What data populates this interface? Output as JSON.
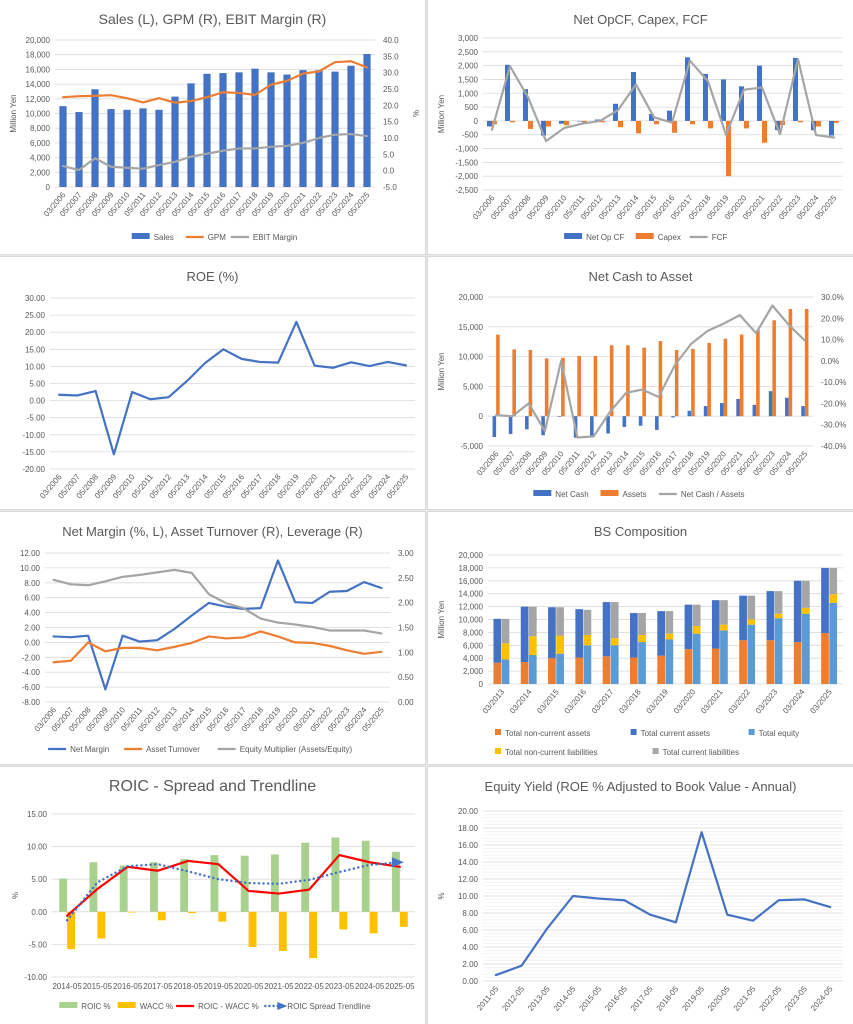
{
  "colors": {
    "blue": "#4472c4",
    "orange": "#ed7d31",
    "gray": "#a5a5a5",
    "yellow": "#ffc000",
    "lightblue": "#5b9bd5",
    "green": "#a9d18e",
    "red": "#ff0000",
    "negative_tick": "#ff0000",
    "text": "#595959",
    "gridline": "#d9d9d9"
  },
  "chart_data": [
    {
      "id": "sales-gpm-ebit",
      "type": "bar",
      "title": "Sales (L), GPM (R), EBIT Margin (R)",
      "ylabel": "Million Yen",
      "y2label": "%",
      "ylim": [
        0,
        20000
      ],
      "yticks": [
        0,
        2000,
        4000,
        6000,
        8000,
        10000,
        12000,
        14000,
        16000,
        18000,
        20000
      ],
      "ytick_labels": [
        "0",
        "2,000",
        "4,000",
        "6,000",
        "8,000",
        "10,000",
        "12,000",
        "14,000",
        "16,000",
        "18,000",
        "20,000"
      ],
      "y2lim": [
        -5,
        40
      ],
      "y2ticks": [
        -5,
        0,
        5,
        10,
        15,
        20,
        25,
        30,
        35,
        40
      ],
      "y2tick_labels": [
        "-5.0",
        "0.0",
        "5.0",
        "10.0",
        "15.0",
        "20.0",
        "25.0",
        "30.0",
        "35.0",
        "40.0"
      ],
      "categories": [
        "03/2006",
        "05/2007",
        "05/2008",
        "05/2009",
        "05/2010",
        "05/2011",
        "05/2012",
        "05/2013",
        "05/2014",
        "05/2015",
        "05/2016",
        "05/2017",
        "05/2018",
        "05/2019",
        "05/2020",
        "05/2021",
        "05/2022",
        "05/2023",
        "05/2024",
        "05/2025"
      ],
      "grid": true,
      "legend": "bottom",
      "series": [
        {
          "name": "Sales",
          "kind": "bar",
          "axis": "left",
          "color": "blue",
          "values": [
            11000,
            10200,
            13300,
            10600,
            10500,
            10700,
            10500,
            12300,
            14100,
            15400,
            15500,
            15600,
            16100,
            15600,
            15300,
            15900,
            15900,
            15700,
            16500,
            18100
          ]
        },
        {
          "name": "GPM",
          "kind": "line",
          "axis": "right",
          "color": "orange",
          "values": [
            22.5,
            22.8,
            22.9,
            23.1,
            22.2,
            20.9,
            22.2,
            20.8,
            21.3,
            22.5,
            24.0,
            23.8,
            23.2,
            26.3,
            27.5,
            29.7,
            30.4,
            33.2,
            33.5,
            31.6
          ]
        },
        {
          "name": "EBIT Margin",
          "kind": "line",
          "axis": "right",
          "color": "gray",
          "values": [
            1.4,
            0.2,
            3.8,
            1.2,
            0.9,
            0.6,
            1.7,
            2.7,
            4.3,
            5.2,
            6.1,
            6.8,
            6.8,
            7.3,
            7.6,
            8.5,
            10.0,
            11.0,
            11.2,
            10.6
          ]
        }
      ]
    },
    {
      "id": "net-opcf-capex-fcf",
      "type": "bar",
      "title": "Net OpCF, Capex, FCF",
      "ylabel": "Million Yen",
      "ylim": [
        -2500,
        3000
      ],
      "yticks": [
        -2500,
        -2000,
        -1500,
        -1000,
        -500,
        0,
        500,
        1000,
        1500,
        2000,
        2500,
        3000
      ],
      "ytick_labels": [
        "-2,500",
        "-2,000",
        "-1,500",
        "-1,000",
        "-500",
        "0",
        "500",
        "1,000",
        "1,500",
        "2,000",
        "2,500",
        "3,000"
      ],
      "categories": [
        "03/2006",
        "05/2007",
        "05/2008",
        "05/2009",
        "05/2010",
        "05/2011",
        "05/2012",
        "05/2013",
        "05/2014",
        "05/2015",
        "05/2016",
        "05/2017",
        "05/2018",
        "05/2019",
        "05/2020",
        "05/2021",
        "05/2022",
        "05/2023",
        "05/2024",
        "05/2025"
      ],
      "grid": true,
      "legend": "bottom",
      "series": [
        {
          "name": "Net Op CF",
          "kind": "bar",
          "axis": "left",
          "color": "blue",
          "values": [
            -200,
            2030,
            1150,
            -530,
            -100,
            -20,
            50,
            620,
            1770,
            250,
            370,
            2300,
            1700,
            1500,
            1250,
            2000,
            -330,
            2280,
            -340,
            -530
          ]
        },
        {
          "name": "Capex",
          "kind": "bar",
          "axis": "left",
          "color": "orange",
          "values": [
            -120,
            -50,
            -290,
            -200,
            -160,
            -80,
            -50,
            -230,
            -450,
            -120,
            -430,
            -120,
            -270,
            -2000,
            -270,
            -790,
            -150,
            -50,
            -200,
            -70
          ]
        },
        {
          "name": "FCF",
          "kind": "line",
          "axis": "left",
          "color": "gray",
          "values": [
            -320,
            1980,
            860,
            -730,
            -260,
            -100,
            0,
            390,
            1320,
            130,
            -60,
            2180,
            1430,
            -500,
            1130,
            1210,
            -480,
            2230,
            -510,
            -600
          ]
        }
      ]
    },
    {
      "id": "roe",
      "type": "line",
      "title": "ROE (%)",
      "ylim": [
        -20,
        30
      ],
      "yticks": [
        -20,
        -15,
        -10,
        -5,
        0,
        5,
        10,
        15,
        20,
        25,
        30
      ],
      "ytick_labels": [
        "-20.00",
        "-15.00",
        "-10.00",
        "-5.00",
        "0.00",
        "5.00",
        "10.00",
        "15.00",
        "20.00",
        "25.00",
        "30.00"
      ],
      "categories": [
        "03/2006",
        "05/2007",
        "05/2008",
        "05/2009",
        "05/2010",
        "05/2011",
        "05/2012",
        "05/2013",
        "05/2014",
        "05/2015",
        "05/2016",
        "05/2017",
        "05/2018",
        "05/2019",
        "05/2020",
        "05/2021",
        "05/2022",
        "05/2023",
        "05/2024",
        "05/2025"
      ],
      "grid": true,
      "legend": "none",
      "series": [
        {
          "name": "ROE",
          "kind": "line",
          "axis": "left",
          "color": "blue",
          "values": [
            1.7,
            1.5,
            2.8,
            -15.7,
            2.5,
            0.4,
            1.0,
            5.7,
            11.0,
            15.0,
            12.2,
            11.3,
            11.1,
            23.0,
            10.2,
            9.6,
            11.2,
            10.1,
            11.3,
            10.3
          ]
        }
      ]
    },
    {
      "id": "net-cash-to-asset",
      "type": "bar",
      "title": "Net Cash to Asset",
      "ylabel": "Million Yen",
      "ylim": [
        -5000,
        20000
      ],
      "yticks": [
        -5000,
        0,
        5000,
        10000,
        15000,
        20000
      ],
      "ytick_labels": [
        "-5,000",
        "0",
        "5,000",
        "10,000",
        "15,000",
        "20,000"
      ],
      "y2lim": [
        -40,
        30
      ],
      "y2ticks": [
        -40,
        -30,
        -20,
        -10,
        0,
        10,
        20,
        30
      ],
      "y2tick_labels": [
        "-40.0%",
        "-30.0%",
        "-20.0%",
        "-10.0%",
        "0.0%",
        "10.0%",
        "20.0%",
        "30.0%"
      ],
      "categories": [
        "03/2006",
        "05/2007",
        "05/2008",
        "05/2009",
        "05/2010",
        "05/2011",
        "05/2012",
        "05/2013",
        "05/2014",
        "05/2015",
        "05/2016",
        "05/2017",
        "05/2018",
        "05/2019",
        "05/2020",
        "05/2021",
        "05/2022",
        "05/2023",
        "05/2024",
        "05/2025"
      ],
      "grid": true,
      "legend": "bottom",
      "series": [
        {
          "name": "Net Cash",
          "kind": "bar",
          "axis": "left",
          "color": "blue",
          "values": [
            -3500,
            -3000,
            -2200,
            -3200,
            0,
            -3600,
            -3500,
            -2900,
            -1800,
            -1600,
            -2300,
            -200,
            900,
            1700,
            2200,
            2900,
            1900,
            4200,
            3100,
            1700
          ]
        },
        {
          "name": "Assets",
          "kind": "bar",
          "axis": "left",
          "color": "orange",
          "values": [
            13700,
            11200,
            11100,
            9700,
            9800,
            10100,
            10100,
            11900,
            11900,
            11500,
            12600,
            11100,
            11300,
            12300,
            13000,
            13700,
            14400,
            16100,
            18000,
            18000
          ]
        },
        {
          "name": "Net Cash / Assets",
          "kind": "line",
          "axis": "right",
          "color": "gray",
          "values": [
            -25.5,
            -26,
            -20,
            -33,
            0,
            -36,
            -35.5,
            -24,
            -15,
            -13.5,
            -17,
            -2,
            8,
            14,
            17.5,
            21.5,
            13,
            26,
            17,
            9.5
          ]
        }
      ]
    },
    {
      "id": "dupont",
      "type": "line",
      "title": "Net Margin (%, L), Asset Turnover (R), Leverage (R)",
      "ylim": [
        -8,
        12
      ],
      "yticks": [
        -8,
        -6,
        -4,
        -2,
        0,
        2,
        4,
        6,
        8,
        10,
        12
      ],
      "ytick_labels": [
        "-8.00",
        "-6.00",
        "-4.00",
        "-2.00",
        "0.00",
        "2.00",
        "4.00",
        "6.00",
        "8.00",
        "10.00",
        "12.00"
      ],
      "y2lim": [
        0,
        3
      ],
      "y2ticks": [
        0,
        0.5,
        1,
        1.5,
        2,
        2.5,
        3
      ],
      "y2tick_labels": [
        "0.00",
        "0.50",
        "1.00",
        "1.50",
        "2.00",
        "2.50",
        "3.00"
      ],
      "categories": [
        "03/2006",
        "05/2007",
        "05/2008",
        "05/2009",
        "05/2010",
        "05/2011",
        "05/2012",
        "05/2013",
        "05/2014",
        "05/2015",
        "05/2016",
        "05/2017",
        "05/2018",
        "05/2019",
        "05/2020",
        "05/2021",
        "05/2022",
        "05/2023",
        "05/2024",
        "05/2025"
      ],
      "grid": true,
      "legend": "bottom",
      "series": [
        {
          "name": "Net Margin",
          "kind": "line",
          "axis": "left",
          "color": "blue",
          "values": [
            0.8,
            0.7,
            0.9,
            -6.3,
            0.9,
            0.1,
            0.3,
            1.8,
            3.6,
            5.3,
            4.8,
            4.5,
            4.6,
            11.0,
            5.4,
            5.3,
            6.8,
            6.9,
            8.1,
            7.3
          ]
        },
        {
          "name": "Asset Turnover",
          "kind": "line",
          "axis": "right",
          "color": "orange",
          "values": [
            0.8,
            0.83,
            1.2,
            1.02,
            1.09,
            1.09,
            1.04,
            1.11,
            1.19,
            1.32,
            1.28,
            1.3,
            1.42,
            1.32,
            1.2,
            1.19,
            1.13,
            1.04,
            0.97,
            1.01
          ]
        },
        {
          "name": "Equity Multiplier (Assets/Equity)",
          "kind": "line",
          "axis": "right",
          "color": "gray",
          "values": [
            2.46,
            2.37,
            2.35,
            2.43,
            2.52,
            2.56,
            2.61,
            2.66,
            2.6,
            2.17,
            1.99,
            1.89,
            1.68,
            1.6,
            1.56,
            1.51,
            1.44,
            1.44,
            1.44,
            1.38
          ]
        }
      ]
    },
    {
      "id": "bs-composition",
      "type": "bar",
      "subtype": "stacked-pairs",
      "title": "BS Composition",
      "ylabel": "Million Yen",
      "ylim": [
        0,
        20000
      ],
      "yticks": [
        0,
        2000,
        4000,
        6000,
        8000,
        10000,
        12000,
        14000,
        16000,
        18000,
        20000
      ],
      "ytick_labels": [
        "0",
        "2,000",
        "4,000",
        "6,000",
        "8,000",
        "10,000",
        "12,000",
        "14,000",
        "16,000",
        "18,000",
        "20,000"
      ],
      "categories": [
        "03/2013",
        "03/2014",
        "03/2015",
        "03/2016",
        "03/2017",
        "03/2018",
        "03/2019",
        "03/2020",
        "03/2021",
        "03/2022",
        "03/2023",
        "03/2024",
        "03/2025"
      ],
      "grid": true,
      "legend": "bottom",
      "series": [
        {
          "name": "Total non-current assets",
          "stack": "assets",
          "color": "orange",
          "values": [
            3300,
            3400,
            4000,
            4100,
            4300,
            4100,
            4400,
            5400,
            5500,
            6800,
            6800,
            6500,
            7900
          ]
        },
        {
          "name": "Total current assets",
          "stack": "assets",
          "color": "blue",
          "values": [
            6800,
            8600,
            7900,
            7500,
            8400,
            6900,
            6900,
            6900,
            7500,
            6900,
            7600,
            9500,
            10100
          ]
        },
        {
          "name": "Total equity",
          "stack": "liabilities",
          "color": "lightblue",
          "values": [
            3800,
            4500,
            4700,
            6000,
            6000,
            6500,
            6900,
            7800,
            8300,
            9200,
            10200,
            10900,
            12600
          ]
        },
        {
          "name": "Total non-current liabilities",
          "stack": "liabilities",
          "color": "yellow",
          "values": [
            2500,
            2900,
            2800,
            1600,
            1100,
            1100,
            900,
            1200,
            900,
            800,
            700,
            900,
            1300
          ]
        },
        {
          "name": "Total current liabilities",
          "stack": "liabilities",
          "color": "gray",
          "values": [
            3800,
            4600,
            4400,
            3900,
            5600,
            3400,
            3500,
            3300,
            3800,
            3700,
            3500,
            4200,
            4100
          ]
        }
      ]
    },
    {
      "id": "roic-spread",
      "type": "bar",
      "title": "ROIC - Spread and Trendline",
      "ylabel": "%",
      "ylim": [
        -10,
        15
      ],
      "yticks": [
        -10,
        -5,
        0,
        5,
        10,
        15
      ],
      "ytick_labels": [
        "-10.00",
        "-5.00",
        "0.00",
        "5.00",
        "10.00",
        "15.00"
      ],
      "categories": [
        "2014-05",
        "2015-05",
        "2016-05",
        "2017-05",
        "2018-05",
        "2019-05",
        "2020-05",
        "2021-05",
        "2022-05",
        "2023-05",
        "2024-05",
        "2025-05"
      ],
      "grid": true,
      "legend": "bottom",
      "series": [
        {
          "name": "ROIC %",
          "kind": "bar",
          "axis": "left",
          "color": "green",
          "values": [
            5.1,
            7.6,
            7.1,
            7.6,
            8.1,
            8.7,
            8.6,
            8.8,
            10.6,
            11.4,
            10.9,
            9.2
          ]
        },
        {
          "name": "WACC %",
          "kind": "bar",
          "axis": "left",
          "color": "yellow",
          "values": [
            -5.7,
            -4.1,
            -0.1,
            -1.3,
            -0.2,
            -1.5,
            -5.4,
            -6.0,
            -7.1,
            -2.7,
            -3.3,
            -2.3
          ]
        },
        {
          "name": "ROIC - WACC %",
          "kind": "line",
          "axis": "left",
          "color": "red",
          "values": [
            -0.6,
            3.5,
            6.9,
            6.3,
            7.8,
            7.3,
            3.2,
            2.8,
            3.4,
            8.7,
            7.6,
            6.9
          ]
        },
        {
          "name": "ROIC Spread Trendline",
          "kind": "trend",
          "axis": "left",
          "color": "blue",
          "values": [
            -1.3,
            4.5,
            7.0,
            7.3,
            6.2,
            5.0,
            4.4,
            4.3,
            4.9,
            6.1,
            7.2,
            7.6
          ]
        }
      ]
    },
    {
      "id": "equity-yield",
      "type": "line",
      "title": "Equity Yield (ROE % Adjusted to Book Value - Annual)",
      "ylabel": "%",
      "ylim": [
        0,
        20
      ],
      "yticks": [
        0,
        2,
        4,
        6,
        8,
        10,
        12,
        14,
        16,
        18,
        20
      ],
      "ytick_labels": [
        "0.00",
        "2.00",
        "4.00",
        "6.00",
        "8.00",
        "10.00",
        "12.00",
        "14.00",
        "16.00",
        "18.00",
        "20.00"
      ],
      "categories": [
        "2011-05",
        "2012-05",
        "2013-05",
        "2014-05",
        "2015-05",
        "2016-05",
        "2017-05",
        "2018-05",
        "2019-05",
        "2020-05",
        "2021-05",
        "2022-05",
        "2023-05",
        "2024-05"
      ],
      "grid": true,
      "minor_grid": true,
      "legend": "none",
      "series": [
        {
          "name": "Equity Yield",
          "kind": "line",
          "axis": "left",
          "color": "blue",
          "values": [
            0.7,
            1.8,
            6.2,
            10.0,
            9.7,
            9.5,
            7.8,
            6.9,
            17.5,
            7.8,
            7.1,
            9.5,
            9.6,
            8.7
          ]
        }
      ]
    }
  ]
}
